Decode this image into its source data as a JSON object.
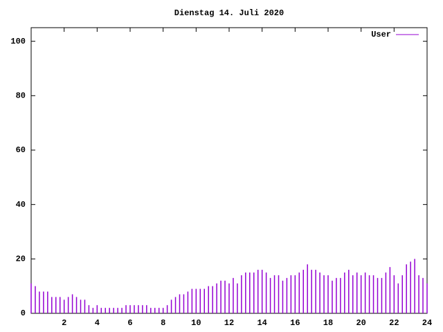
{
  "chart_data": {
    "type": "impulse",
    "title": "Dienstag 14. Juli 2020",
    "series": [
      {
        "name": "User",
        "color": "#9400d3",
        "x": [
          0,
          0.25,
          0.5,
          0.75,
          1,
          1.25,
          1.5,
          1.75,
          2,
          2.25,
          2.5,
          2.75,
          3,
          3.25,
          3.5,
          3.75,
          4,
          4.25,
          4.5,
          4.75,
          5,
          5.25,
          5.5,
          5.75,
          6,
          6.25,
          6.5,
          6.75,
          7,
          7.25,
          7.5,
          7.75,
          8,
          8.25,
          8.5,
          8.75,
          9,
          9.25,
          9.5,
          9.75,
          10,
          10.25,
          10.5,
          10.75,
          11,
          11.25,
          11.5,
          11.75,
          12,
          12.25,
          12.5,
          12.75,
          13,
          13.25,
          13.5,
          13.75,
          14,
          14.25,
          14.5,
          14.75,
          15,
          15.25,
          15.5,
          15.75,
          16,
          16.25,
          16.5,
          16.75,
          17,
          17.25,
          17.5,
          17.75,
          18,
          18.25,
          18.5,
          18.75,
          19,
          19.25,
          19.5,
          19.75,
          20,
          20.25,
          20.5,
          20.75,
          21,
          21.25,
          21.5,
          21.75,
          22,
          22.25,
          22.5,
          22.75,
          23,
          23.25,
          23.5,
          23.75,
          24
        ],
        "values": [
          11,
          10,
          8,
          8,
          8,
          6,
          6,
          6,
          5,
          6,
          7,
          6,
          5,
          5,
          3,
          2,
          3,
          2,
          2,
          2,
          2,
          2,
          2,
          3,
          3,
          3,
          3,
          3,
          3,
          2,
          2,
          2,
          2,
          3,
          5,
          6,
          7,
          7,
          8,
          9,
          9,
          9,
          9,
          10,
          10,
          11,
          12,
          12,
          11,
          13,
          11,
          14,
          15,
          15,
          15,
          16,
          16,
          15,
          13,
          14,
          14,
          12,
          13,
          14,
          14,
          15,
          16,
          18,
          16,
          16,
          15,
          14,
          14,
          12,
          13,
          13,
          15,
          16,
          14,
          15,
          14,
          15,
          14,
          14,
          13,
          13,
          15,
          17,
          14,
          11,
          14,
          18,
          19,
          20,
          14,
          13,
          11
        ]
      }
    ],
    "xlim": [
      0,
      24
    ],
    "xticks": [
      2,
      4,
      6,
      8,
      10,
      12,
      14,
      16,
      18,
      20,
      22,
      24
    ],
    "ylim": [
      0,
      105
    ],
    "yticks": [
      0,
      20,
      40,
      60,
      80,
      100
    ],
    "legend": "top-right"
  }
}
